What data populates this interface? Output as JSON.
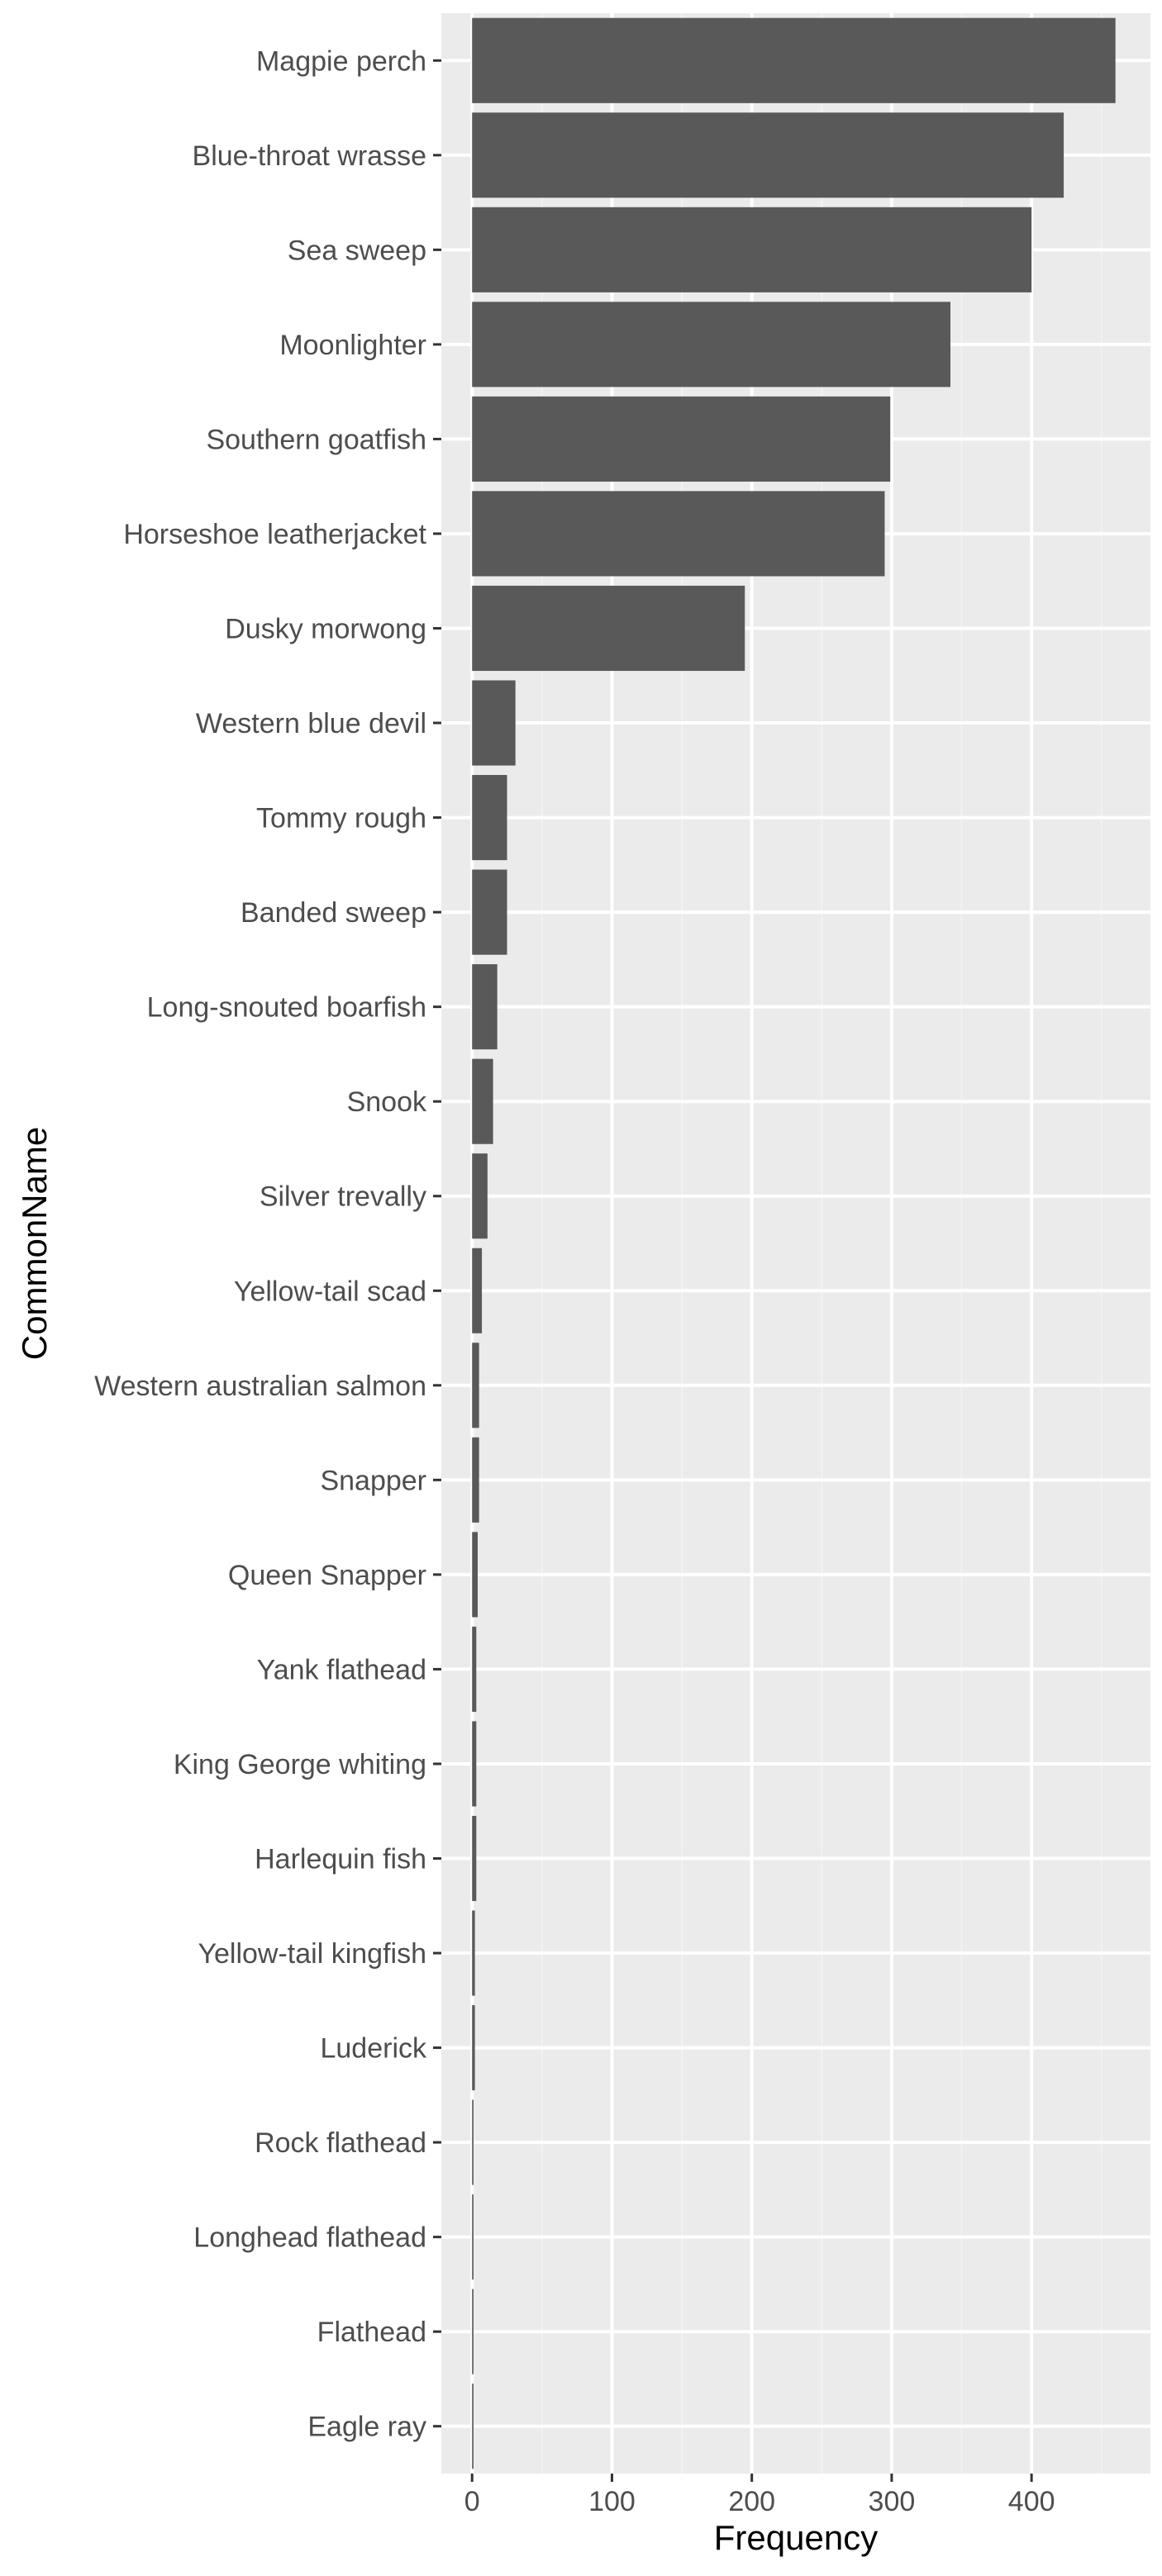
{
  "chart_data": {
    "type": "bar",
    "orientation": "horizontal",
    "xlabel": "Frequency",
    "ylabel": "CommonName",
    "xlim": [
      -22,
      485
    ],
    "x_ticks": [
      0,
      100,
      200,
      300,
      400
    ],
    "grid": true,
    "colors": {
      "bar": "#595959",
      "panel": "#ebebeb",
      "grid_major": "#ffffff",
      "grid_minor": "#f2f2f2",
      "text": "#4d4d4d"
    },
    "categories": [
      "Magpie perch",
      "Blue-throat wrasse",
      "Sea sweep",
      "Moonlighter",
      "Southern goatfish",
      "Horseshoe leatherjacket",
      "Dusky morwong",
      "Western blue devil",
      "Tommy rough",
      "Banded sweep",
      "Long-snouted boarfish",
      "Snook",
      "Silver trevally",
      "Yellow-tail scad",
      "Western australian salmon",
      "Snapper",
      "Queen Snapper",
      "Yank flathead",
      "King George whiting",
      "Harlequin fish",
      "Yellow-tail kingfish",
      "Luderick",
      "Rock flathead",
      "Longhead flathead",
      "Flathead",
      "Eagle ray"
    ],
    "values": [
      460,
      423,
      400,
      342,
      299,
      295,
      195,
      31,
      25,
      25,
      18,
      15,
      11,
      7,
      5,
      5,
      4,
      3,
      3,
      3,
      2,
      2,
      1,
      1,
      1,
      1
    ]
  }
}
